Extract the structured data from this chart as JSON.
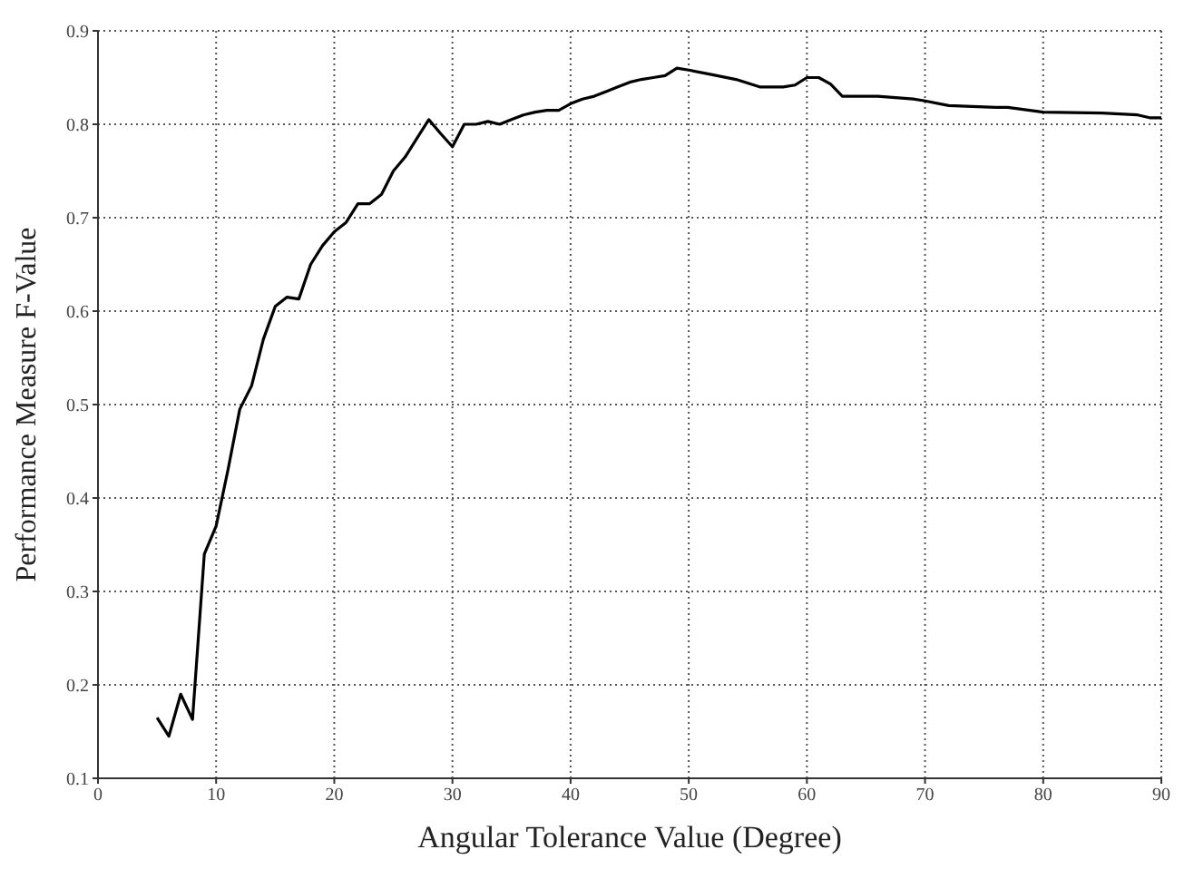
{
  "chart_data": {
    "type": "line",
    "xlabel": "Angular Tolerance Value (Degree)",
    "ylabel": "Performance Measure F-Value",
    "series": [
      {
        "color": "#000000",
        "x": [
          5,
          6,
          7,
          8,
          9,
          10,
          11,
          12,
          13,
          14,
          15,
          16,
          17,
          18,
          19,
          20,
          21,
          22,
          23,
          24,
          25,
          26,
          27,
          28,
          29,
          30,
          31,
          32,
          33,
          34,
          35,
          36,
          37,
          38,
          39,
          40,
          41,
          42,
          43,
          44,
          45,
          46,
          47,
          48,
          49,
          50,
          52,
          54,
          56,
          58,
          59,
          60,
          61,
          62,
          63,
          66,
          69,
          70,
          72,
          76,
          77,
          80,
          85,
          88,
          89,
          90
        ],
        "values": [
          0.165,
          0.145,
          0.19,
          0.163,
          0.34,
          0.37,
          0.43,
          0.495,
          0.52,
          0.57,
          0.605,
          0.615,
          0.613,
          0.65,
          0.67,
          0.685,
          0.695,
          0.715,
          0.715,
          0.725,
          0.75,
          0.765,
          0.785,
          0.805,
          0.79,
          0.776,
          0.8,
          0.8,
          0.803,
          0.8,
          0.805,
          0.81,
          0.813,
          0.815,
          0.815,
          0.822,
          0.827,
          0.83,
          0.835,
          0.84,
          0.845,
          0.848,
          0.85,
          0.852,
          0.86,
          0.858,
          0.853,
          0.848,
          0.84,
          0.84,
          0.842,
          0.85,
          0.85,
          0.843,
          0.83,
          0.83,
          0.827,
          0.825,
          0.82,
          0.818,
          0.818,
          0.813,
          0.812,
          0.81,
          0.807,
          0.807
        ]
      }
    ],
    "xlim": [
      0,
      90
    ],
    "xticks": [
      0,
      10,
      20,
      30,
      40,
      50,
      60,
      70,
      80,
      90
    ],
    "ylim": [
      0.1,
      0.9
    ],
    "yticks": [
      0.1,
      0.2,
      0.3,
      0.4,
      0.5,
      0.6,
      0.7,
      0.8,
      0.9
    ],
    "grid": true,
    "marker": "none",
    "line_style": "solid"
  }
}
